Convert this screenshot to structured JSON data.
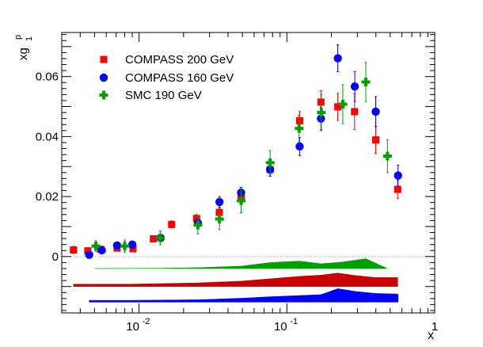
{
  "chart_data": {
    "type": "scatter",
    "title": "",
    "xlabel": "x",
    "ylabel": "xg",
    "ylabel_sub": "1",
    "ylabel_sup": "p",
    "xscale": "log",
    "xlim": [
      0.003,
      1
    ],
    "ylim": [
      -0.0188,
      0.0747
    ],
    "x_major_ticks": [
      {
        "value": 0.01,
        "label": "10",
        "exp": "-2"
      },
      {
        "value": 0.1,
        "label": "10",
        "exp": "-1"
      },
      {
        "value": 1,
        "label": "1",
        "exp": ""
      }
    ],
    "y_ticks": [
      {
        "value": 0,
        "label": "0"
      },
      {
        "value": 0.02,
        "label": "0.02"
      },
      {
        "value": 0.04,
        "label": "0.04"
      },
      {
        "value": 0.06,
        "label": "0.06"
      }
    ],
    "legend_position": "top-left",
    "series": [
      {
        "name": "COMPASS 200 GeV",
        "color": "#ff0000",
        "marker": "square",
        "points": [
          {
            "x": 0.0036,
            "y": 0.0022,
            "err": 0.0012
          },
          {
            "x": 0.0045,
            "y": 0.0019,
            "err": 0.001
          },
          {
            "x": 0.0055,
            "y": 0.0024,
            "err": 0.001
          },
          {
            "x": 0.0071,
            "y": 0.0028,
            "err": 0.001
          },
          {
            "x": 0.0091,
            "y": 0.0026,
            "err": 0.001
          },
          {
            "x": 0.0125,
            "y": 0.0059,
            "err": 0.001
          },
          {
            "x": 0.0166,
            "y": 0.0107,
            "err": 0.0012
          },
          {
            "x": 0.0245,
            "y": 0.0127,
            "err": 0.0013
          },
          {
            "x": 0.0349,
            "y": 0.0147,
            "err": 0.0016
          },
          {
            "x": 0.049,
            "y": 0.0196,
            "err": 0.0018
          },
          {
            "x": 0.077,
            "y": 0.029,
            "err": 0.0022
          },
          {
            "x": 0.122,
            "y": 0.0453,
            "err": 0.003
          },
          {
            "x": 0.17,
            "y": 0.0515,
            "err": 0.0038
          },
          {
            "x": 0.221,
            "y": 0.0499,
            "err": 0.0045
          },
          {
            "x": 0.287,
            "y": 0.0483,
            "err": 0.006
          },
          {
            "x": 0.399,
            "y": 0.0389,
            "err": 0.0045
          },
          {
            "x": 0.562,
            "y": 0.0224,
            "err": 0.003
          }
        ]
      },
      {
        "name": "COMPASS 160 GeV",
        "color": "#0000ff",
        "marker": "circle",
        "points": [
          {
            "x": 0.0046,
            "y": 0.0006,
            "err": 0.0012
          },
          {
            "x": 0.0056,
            "y": 0.0021,
            "err": 0.001
          },
          {
            "x": 0.0071,
            "y": 0.0037,
            "err": 0.0009
          },
          {
            "x": 0.009,
            "y": 0.004,
            "err": 0.0008
          },
          {
            "x": 0.014,
            "y": 0.0062,
            "err": 0.001
          },
          {
            "x": 0.025,
            "y": 0.0112,
            "err": 0.0012
          },
          {
            "x": 0.035,
            "y": 0.0182,
            "err": 0.0018
          },
          {
            "x": 0.049,
            "y": 0.0213,
            "err": 0.0018
          },
          {
            "x": 0.077,
            "y": 0.029,
            "err": 0.0022
          },
          {
            "x": 0.122,
            "y": 0.0367,
            "err": 0.003
          },
          {
            "x": 0.17,
            "y": 0.046,
            "err": 0.0038
          },
          {
            "x": 0.221,
            "y": 0.0661,
            "err": 0.0045
          },
          {
            "x": 0.288,
            "y": 0.0567,
            "err": 0.005
          },
          {
            "x": 0.399,
            "y": 0.0483,
            "err": 0.005
          },
          {
            "x": 0.565,
            "y": 0.027,
            "err": 0.0035
          }
        ]
      },
      {
        "name": "SMC 190 GeV",
        "color": "#00a000",
        "marker": "cross",
        "points": [
          {
            "x": 0.0051,
            "y": 0.0035,
            "err": 0.0018
          },
          {
            "x": 0.008,
            "y": 0.0035,
            "err": 0.002
          },
          {
            "x": 0.0139,
            "y": 0.0062,
            "err": 0.0023
          },
          {
            "x": 0.025,
            "y": 0.0105,
            "err": 0.003
          },
          {
            "x": 0.035,
            "y": 0.0125,
            "err": 0.0035
          },
          {
            "x": 0.049,
            "y": 0.0186,
            "err": 0.004
          },
          {
            "x": 0.077,
            "y": 0.0313,
            "err": 0.004
          },
          {
            "x": 0.121,
            "y": 0.0427,
            "err": 0.0045
          },
          {
            "x": 0.171,
            "y": 0.048,
            "err": 0.006
          },
          {
            "x": 0.239,
            "y": 0.0508,
            "err": 0.0065
          },
          {
            "x": 0.342,
            "y": 0.0582,
            "err": 0.0065
          },
          {
            "x": 0.479,
            "y": 0.0335,
            "err": 0.0055
          }
        ]
      }
    ],
    "systematic_bands": [
      {
        "name": "SMC 190 GeV systematic band",
        "color": "#00a000",
        "baseline": -0.004,
        "points": [
          {
            "x": 0.005,
            "y": -0.004
          },
          {
            "x": 0.0139,
            "y": -0.0039
          },
          {
            "x": 0.025,
            "y": -0.0037
          },
          {
            "x": 0.049,
            "y": -0.0032
          },
          {
            "x": 0.077,
            "y": -0.002
          },
          {
            "x": 0.121,
            "y": -0.0015
          },
          {
            "x": 0.171,
            "y": -0.0024
          },
          {
            "x": 0.239,
            "y": -0.0018
          },
          {
            "x": 0.342,
            "y": -0.0007
          },
          {
            "x": 0.479,
            "y": -0.004
          }
        ]
      },
      {
        "name": "COMPASS 200 GeV systematic band",
        "color": "#c80000",
        "baseline": -0.01,
        "points": [
          {
            "x": 0.0036,
            "y": -0.0092
          },
          {
            "x": 0.0091,
            "y": -0.0092
          },
          {
            "x": 0.0245,
            "y": -0.0088
          },
          {
            "x": 0.049,
            "y": -0.0082
          },
          {
            "x": 0.077,
            "y": -0.0074
          },
          {
            "x": 0.122,
            "y": -0.0066
          },
          {
            "x": 0.17,
            "y": -0.0062
          },
          {
            "x": 0.221,
            "y": -0.0055
          },
          {
            "x": 0.287,
            "y": -0.0063
          },
          {
            "x": 0.399,
            "y": -0.007
          },
          {
            "x": 0.562,
            "y": -0.007
          }
        ]
      },
      {
        "name": "COMPASS 160 GeV systematic band",
        "color": "#0000ff",
        "baseline": -0.0152,
        "points": [
          {
            "x": 0.0046,
            "y": -0.0146
          },
          {
            "x": 0.009,
            "y": -0.0146
          },
          {
            "x": 0.025,
            "y": -0.0144
          },
          {
            "x": 0.049,
            "y": -0.0139
          },
          {
            "x": 0.077,
            "y": -0.0134
          },
          {
            "x": 0.122,
            "y": -0.013
          },
          {
            "x": 0.17,
            "y": -0.0127
          },
          {
            "x": 0.221,
            "y": -0.0107
          },
          {
            "x": 0.288,
            "y": -0.0116
          },
          {
            "x": 0.399,
            "y": -0.0123
          },
          {
            "x": 0.565,
            "y": -0.0125
          }
        ]
      }
    ],
    "zero_line": {
      "y": 0,
      "style": "dotted"
    }
  }
}
